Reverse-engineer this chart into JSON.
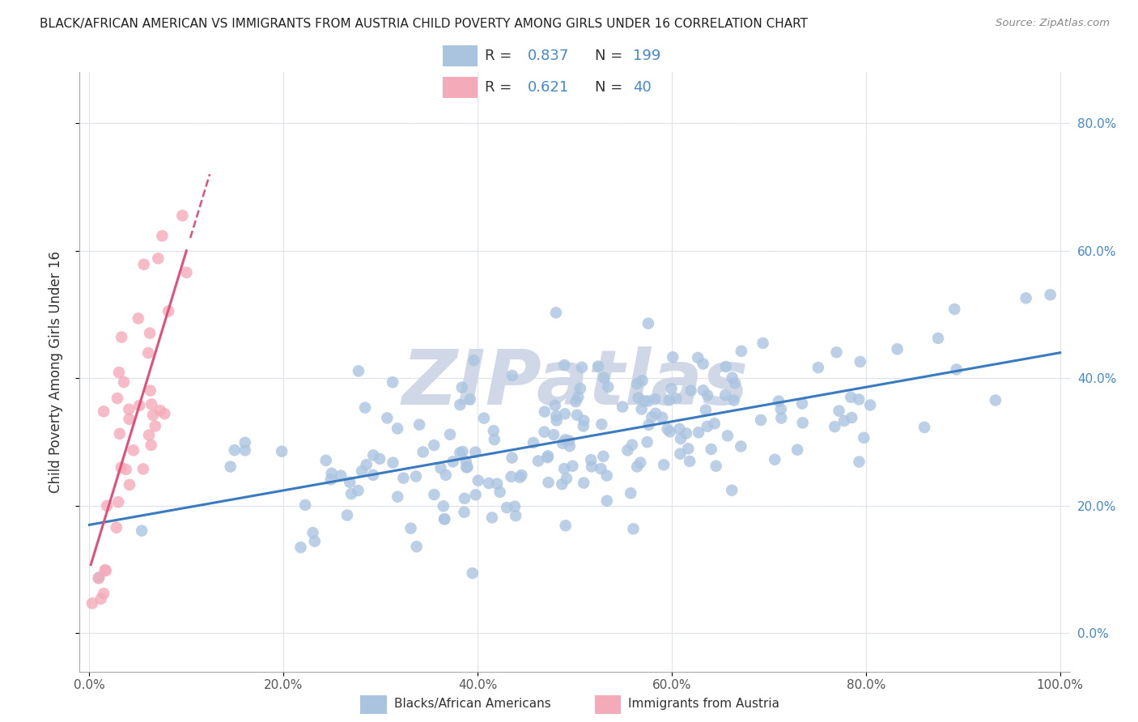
{
  "title": "BLACK/AFRICAN AMERICAN VS IMMIGRANTS FROM AUSTRIA CHILD POVERTY AMONG GIRLS UNDER 16 CORRELATION CHART",
  "source": "Source: ZipAtlas.com",
  "ylabel": "Child Poverty Among Girls Under 16",
  "R_blue": 0.837,
  "N_blue": 199,
  "R_pink": 0.621,
  "N_pink": 40,
  "blue_color": "#aac4e0",
  "pink_color": "#f4aab8",
  "blue_line_color": "#3a7abf",
  "pink_line_color": "#e0507a",
  "background_color": "#ffffff",
  "watermark_text": "ZIPatlas",
  "watermark_color": "#d0d8e8",
  "legend_labels": [
    "Blacks/African Americans",
    "Immigrants from Austria"
  ],
  "xlim": [
    -0.01,
    1.01
  ],
  "ylim": [
    -0.06,
    0.88
  ],
  "x_ticks": [
    0.0,
    0.2,
    0.4,
    0.6,
    0.8,
    1.0
  ],
  "y_ticks": [
    0.0,
    0.2,
    0.4,
    0.6,
    0.8
  ],
  "blue_seed": 12,
  "pink_seed": 7
}
